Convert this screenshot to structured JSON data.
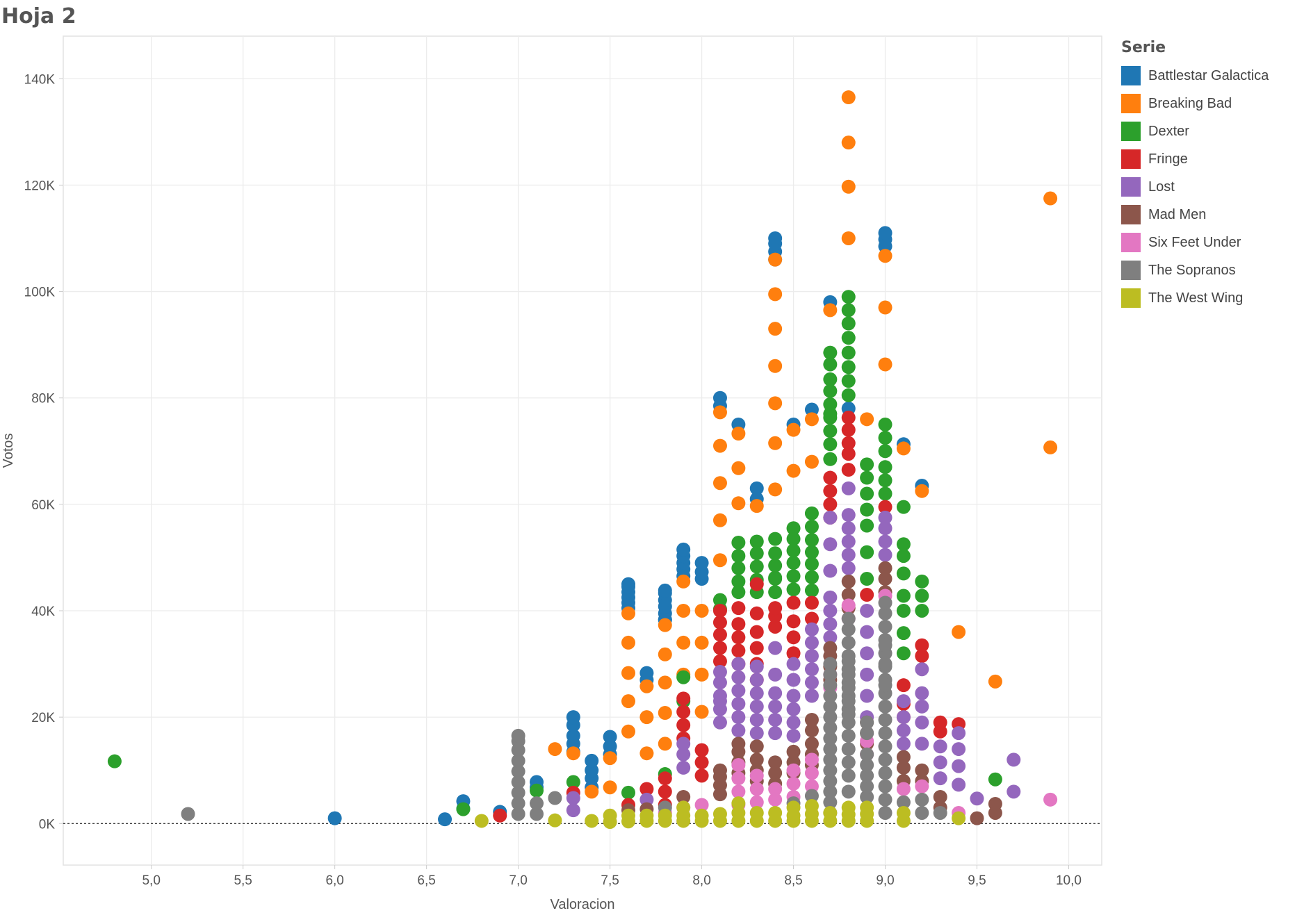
{
  "page": {
    "title": "Hoja 2"
  },
  "legend": {
    "title": "Serie",
    "items": [
      {
        "label": "Battlestar Galactica",
        "color": "#1f77b4"
      },
      {
        "label": "Breaking Bad",
        "color": "#ff7f0e"
      },
      {
        "label": "Dexter",
        "color": "#2ca02c"
      },
      {
        "label": "Fringe",
        "color": "#d62728"
      },
      {
        "label": "Lost",
        "color": "#9467bd"
      },
      {
        "label": "Mad Men",
        "color": "#8c564b"
      },
      {
        "label": "Six Feet Under",
        "color": "#e377c2"
      },
      {
        "label": "The Sopranos",
        "color": "#7f7f7f"
      },
      {
        "label": "The West Wing",
        "color": "#bcbd22"
      }
    ]
  },
  "chart_data": {
    "type": "scatter",
    "title": "",
    "xlabel": "Valoracion",
    "ylabel": "Votos",
    "xlim": [
      4.52,
      10.18
    ],
    "ylim": [
      -7800,
      148000
    ],
    "xticks": [
      5.0,
      5.5,
      6.0,
      6.5,
      7.0,
      7.5,
      8.0,
      8.5,
      9.0,
      9.5,
      10.0
    ],
    "xtick_labels": [
      "5,0",
      "5,5",
      "6,0",
      "6,5",
      "7,0",
      "7,5",
      "8,0",
      "8,5",
      "9,0",
      "9,5",
      "10,0"
    ],
    "yticks": [
      0,
      20000,
      40000,
      60000,
      80000,
      100000,
      120000,
      140000
    ],
    "ytick_labels": [
      "0K",
      "20K",
      "40K",
      "60K",
      "80K",
      "100K",
      "120K",
      "140K"
    ],
    "reference_line": {
      "y": 0,
      "style": "dotted"
    },
    "grid": true,
    "legend_position": "right",
    "series": [
      {
        "name": "Battlestar Galactica",
        "x": [
          6.0,
          6.6,
          6.7,
          6.7,
          6.9,
          7.1,
          7.1,
          7.3,
          7.3,
          7.3,
          7.3,
          7.3,
          7.4,
          7.4,
          7.4,
          7.4,
          7.5,
          7.5,
          7.5,
          7.6,
          7.6,
          7.6,
          7.6,
          7.6,
          7.6,
          7.7,
          7.7,
          7.8,
          7.8,
          7.8,
          7.8,
          7.8,
          7.8,
          7.8,
          7.9,
          7.9,
          7.9,
          7.9,
          7.9,
          8.0,
          8.0,
          8.0,
          8.1,
          8.1,
          8.2,
          8.3,
          8.3,
          8.4,
          8.4,
          8.4,
          8.4,
          8.5,
          8.6,
          8.7,
          8.8,
          9.0,
          9.0,
          9.0,
          9.1,
          9.2
        ],
        "y": [
          1000,
          800,
          2800,
          4200,
          2200,
          6800,
          7800,
          13500,
          15000,
          16500,
          18500,
          20000,
          6800,
          8500,
          10000,
          11800,
          13000,
          14500,
          16300,
          40500,
          41500,
          42500,
          43500,
          44500,
          45000,
          27000,
          28300,
          38300,
          39500,
          40800,
          42000,
          43300,
          43800,
          38300,
          46500,
          47800,
          49000,
          50300,
          51500,
          46000,
          47300,
          49000,
          78500,
          80000,
          75000,
          61000,
          63000,
          106000,
          107500,
          109000,
          110000,
          75000,
          77800,
          98000,
          78000,
          108500,
          109800,
          111000,
          71300,
          63500
        ]
      },
      {
        "name": "Breaking Bad",
        "x": [
          7.2,
          7.3,
          7.4,
          7.5,
          7.5,
          7.6,
          7.6,
          7.6,
          7.6,
          7.6,
          7.7,
          7.7,
          7.7,
          7.8,
          7.8,
          7.8,
          7.8,
          7.8,
          7.9,
          7.9,
          7.9,
          7.9,
          8.0,
          8.0,
          8.0,
          8.0,
          8.1,
          8.1,
          8.1,
          8.1,
          8.1,
          8.2,
          8.2,
          8.2,
          8.3,
          8.4,
          8.4,
          8.4,
          8.4,
          8.4,
          8.4,
          8.4,
          8.5,
          8.5,
          8.6,
          8.6,
          8.7,
          8.8,
          8.8,
          8.8,
          8.8,
          8.9,
          9.0,
          9.0,
          9.0,
          9.1,
          9.2,
          9.4,
          9.6,
          9.9,
          9.9
        ],
        "y": [
          14000,
          13200,
          6000,
          6800,
          12300,
          17300,
          23000,
          28300,
          34000,
          39500,
          13200,
          20000,
          25800,
          15000,
          20800,
          26500,
          31800,
          37300,
          28000,
          34000,
          40000,
          45500,
          21000,
          28000,
          34000,
          40000,
          49500,
          57000,
          64000,
          71000,
          77300,
          60200,
          66800,
          73300,
          59700,
          62800,
          71500,
          79000,
          86000,
          93000,
          99500,
          106000,
          66300,
          74000,
          68000,
          76000,
          96500,
          110000,
          119700,
          128000,
          136500,
          76000,
          86300,
          97000,
          106700,
          70500,
          62500,
          36000,
          26700,
          70700,
          117500
        ]
      },
      {
        "name": "Dexter",
        "x": [
          4.8,
          6.7,
          7.1,
          7.3,
          7.6,
          7.8,
          7.9,
          7.9,
          8.1,
          8.1,
          8.2,
          8.2,
          8.2,
          8.2,
          8.2,
          8.3,
          8.3,
          8.3,
          8.3,
          8.3,
          8.4,
          8.4,
          8.4,
          8.4,
          8.4,
          8.4,
          8.5,
          8.5,
          8.5,
          8.5,
          8.5,
          8.5,
          8.6,
          8.6,
          8.6,
          8.6,
          8.6,
          8.6,
          8.6,
          8.7,
          8.7,
          8.7,
          8.7,
          8.7,
          8.7,
          8.7,
          8.7,
          8.7,
          8.7,
          8.8,
          8.8,
          8.8,
          8.8,
          8.8,
          8.8,
          8.8,
          8.8,
          8.9,
          8.9,
          8.9,
          8.9,
          8.9,
          8.9,
          8.9,
          9.0,
          9.0,
          9.0,
          9.0,
          9.0,
          9.0,
          9.1,
          9.1,
          9.1,
          9.1,
          9.1,
          9.1,
          9.1,
          9.1,
          9.2,
          9.2,
          9.2,
          9.6
        ],
        "y": [
          11700,
          2700,
          6200,
          7800,
          5800,
          9300,
          23000,
          27500,
          40300,
          42000,
          43500,
          45500,
          48000,
          50300,
          52800,
          43500,
          45800,
          48300,
          50800,
          53000,
          43500,
          46200,
          48500,
          50800,
          53500,
          46000,
          44000,
          46500,
          49000,
          51300,
          53500,
          55500,
          43800,
          46300,
          48800,
          51000,
          53300,
          55800,
          58300,
          68500,
          71300,
          73800,
          76300,
          78800,
          81300,
          83500,
          86300,
          88500,
          77000,
          80500,
          83200,
          85800,
          88500,
          91300,
          94000,
          96500,
          99000,
          46000,
          51000,
          56000,
          59000,
          62000,
          65000,
          67500,
          62000,
          64500,
          67000,
          70000,
          72500,
          75000,
          32000,
          35800,
          40000,
          42800,
          47000,
          50300,
          52500,
          59500,
          40000,
          42800,
          45500,
          8300
        ]
      },
      {
        "name": "Fringe",
        "x": [
          6.9,
          7.3,
          7.6,
          7.7,
          7.8,
          7.8,
          7.8,
          7.9,
          7.9,
          7.9,
          7.9,
          8.0,
          8.0,
          8.0,
          8.1,
          8.1,
          8.1,
          8.1,
          8.1,
          8.2,
          8.2,
          8.2,
          8.2,
          8.2,
          8.3,
          8.3,
          8.3,
          8.3,
          8.3,
          8.3,
          8.4,
          8.4,
          8.4,
          8.5,
          8.5,
          8.5,
          8.5,
          8.6,
          8.6,
          8.7,
          8.7,
          8.7,
          8.7,
          8.8,
          8.8,
          8.8,
          8.8,
          8.8,
          8.9,
          9.0,
          9.1,
          9.1,
          9.1,
          9.2,
          9.2,
          9.3,
          9.3,
          9.4
        ],
        "y": [
          1500,
          5800,
          3500,
          6500,
          3500,
          6000,
          8500,
          16000,
          18500,
          21000,
          23500,
          9000,
          11500,
          13800,
          30500,
          33000,
          35500,
          37800,
          40000,
          30000,
          32500,
          35000,
          37500,
          40500,
          27000,
          30000,
          33000,
          36000,
          39500,
          45000,
          37000,
          39000,
          40500,
          32000,
          35000,
          38000,
          41500,
          38500,
          41500,
          57500,
          60000,
          62500,
          65000,
          66500,
          69500,
          71500,
          74000,
          76300,
          43000,
          59500,
          20000,
          22500,
          26000,
          31500,
          33500,
          17300,
          19000,
          18700
        ]
      },
      {
        "name": "Lost",
        "x": [
          7.3,
          7.3,
          7.7,
          7.9,
          7.9,
          7.9,
          8.1,
          8.1,
          8.1,
          8.1,
          8.1,
          8.1,
          8.2,
          8.2,
          8.2,
          8.2,
          8.2,
          8.2,
          8.3,
          8.3,
          8.3,
          8.3,
          8.3,
          8.3,
          8.4,
          8.4,
          8.4,
          8.4,
          8.4,
          8.4,
          8.5,
          8.5,
          8.5,
          8.5,
          8.5,
          8.5,
          8.6,
          8.6,
          8.6,
          8.6,
          8.6,
          8.6,
          8.7,
          8.7,
          8.7,
          8.7,
          8.7,
          8.7,
          8.7,
          8.8,
          8.8,
          8.8,
          8.8,
          8.8,
          8.8,
          8.9,
          8.9,
          8.9,
          8.9,
          8.9,
          8.9,
          9.0,
          9.0,
          9.0,
          9.0,
          9.1,
          9.1,
          9.1,
          9.1,
          9.2,
          9.2,
          9.2,
          9.2,
          9.2,
          9.3,
          9.3,
          9.3,
          9.4,
          9.4,
          9.4,
          9.4,
          9.5,
          9.7,
          9.7
        ],
        "y": [
          2500,
          4800,
          4500,
          10500,
          13000,
          15000,
          19000,
          21500,
          24000,
          26500,
          28500,
          23000,
          17500,
          20000,
          22500,
          25000,
          27500,
          30000,
          17000,
          19500,
          22000,
          24500,
          27000,
          29500,
          17000,
          19500,
          22000,
          24500,
          28000,
          33000,
          16500,
          19000,
          21500,
          24000,
          27000,
          30000,
          24000,
          26500,
          29000,
          31500,
          34000,
          36500,
          35000,
          37500,
          40000,
          42500,
          47500,
          52500,
          57500,
          48000,
          50500,
          53000,
          55500,
          58000,
          63000,
          20000,
          24000,
          28000,
          32000,
          36000,
          40000,
          50500,
          53000,
          55500,
          57500,
          15000,
          17500,
          20000,
          23000,
          15000,
          19000,
          22000,
          24500,
          29000,
          8500,
          11500,
          14500,
          7300,
          10800,
          14000,
          17000,
          4700,
          6000,
          12000
        ]
      },
      {
        "name": "Mad Men",
        "x": [
          7.6,
          7.7,
          7.9,
          8.1,
          8.1,
          8.1,
          8.1,
          8.2,
          8.2,
          8.2,
          8.2,
          8.3,
          8.3,
          8.3,
          8.3,
          8.4,
          8.4,
          8.4,
          8.5,
          8.5,
          8.5,
          8.6,
          8.6,
          8.6,
          8.6,
          8.6,
          8.7,
          8.7,
          8.7,
          8.7,
          8.8,
          8.8,
          8.8,
          8.9,
          8.9,
          8.9,
          9.0,
          9.0,
          9.0,
          9.1,
          9.1,
          9.1,
          9.2,
          9.2,
          9.3,
          9.3,
          9.5,
          9.6,
          9.6
        ],
        "y": [
          2500,
          2700,
          5000,
          5500,
          7200,
          8800,
          10000,
          9500,
          11500,
          13500,
          15000,
          8000,
          10000,
          12000,
          14500,
          7500,
          9500,
          11500,
          9500,
          11500,
          13500,
          11000,
          13000,
          15000,
          17500,
          19500,
          27000,
          29500,
          31500,
          33000,
          40500,
          43000,
          45500,
          15000,
          17000,
          19000,
          43500,
          46000,
          48000,
          8000,
          10500,
          12500,
          8000,
          10000,
          3000,
          5000,
          1000,
          2000,
          3700
        ]
      },
      {
        "name": "Six Feet Under",
        "x": [
          7.8,
          7.9,
          8.0,
          8.2,
          8.2,
          8.2,
          8.2,
          8.3,
          8.3,
          8.3,
          8.4,
          8.4,
          8.5,
          8.5,
          8.5,
          8.6,
          8.6,
          8.6,
          8.7,
          8.7,
          8.8,
          8.8,
          8.9,
          8.9,
          9.0,
          9.1,
          9.2,
          9.4,
          9.9
        ],
        "y": [
          2000,
          3000,
          3500,
          3500,
          6000,
          8500,
          11000,
          4000,
          6500,
          9000,
          4500,
          6500,
          5000,
          7500,
          10000,
          7000,
          9500,
          12000,
          25500,
          28000,
          38500,
          41000,
          13000,
          15500,
          42800,
          6500,
          7000,
          2000,
          4500
        ]
      },
      {
        "name": "The Sopranos",
        "x": [
          5.2,
          7.0,
          7.0,
          7.0,
          7.0,
          7.0,
          7.0,
          7.0,
          7.0,
          7.0,
          7.1,
          7.1,
          7.2,
          7.8,
          8.5,
          8.6,
          8.7,
          8.7,
          8.7,
          8.7,
          8.7,
          8.7,
          8.7,
          8.7,
          8.7,
          8.7,
          8.7,
          8.7,
          8.7,
          8.7,
          8.7,
          8.8,
          8.8,
          8.8,
          8.8,
          8.8,
          8.8,
          8.8,
          8.8,
          8.8,
          8.8,
          8.8,
          8.8,
          8.8,
          8.8,
          8.8,
          8.8,
          8.8,
          8.8,
          8.8,
          8.9,
          8.9,
          8.9,
          8.9,
          8.9,
          8.9,
          8.9,
          9.0,
          9.0,
          9.0,
          9.0,
          9.0,
          9.0,
          9.0,
          9.0,
          9.0,
          9.0,
          9.0,
          9.0,
          9.0,
          9.0,
          9.0,
          9.0,
          9.0,
          9.0,
          9.0,
          9.0,
          9.1,
          9.2,
          9.2,
          9.3
        ],
        "y": [
          1800,
          1800,
          3800,
          5800,
          7800,
          9800,
          11800,
          13800,
          15500,
          16500,
          1800,
          3800,
          4800,
          3000,
          3800,
          5200,
          4000,
          6000,
          8000,
          10000,
          12000,
          14000,
          16000,
          18000,
          20000,
          22000,
          24000,
          2000,
          26000,
          28000,
          30000,
          6000,
          9000,
          11500,
          14000,
          16500,
          19000,
          21500,
          24000,
          26500,
          29000,
          31500,
          34000,
          36500,
          38500,
          20500,
          23000,
          25500,
          28000,
          30500,
          5000,
          7000,
          9000,
          11000,
          13000,
          17000,
          19000,
          2000,
          4500,
          7000,
          9500,
          12000,
          14500,
          17000,
          19500,
          22000,
          24500,
          27000,
          29500,
          32000,
          34500,
          37000,
          39500,
          41500,
          26000,
          30000,
          33500,
          4000,
          2000,
          4500,
          2000
        ]
      },
      {
        "name": "The West Wing",
        "x": [
          6.8,
          7.2,
          7.4,
          7.5,
          7.5,
          7.6,
          7.6,
          7.7,
          7.7,
          7.8,
          7.8,
          7.9,
          7.9,
          7.9,
          8.0,
          8.0,
          8.1,
          8.1,
          8.2,
          8.2,
          8.2,
          8.3,
          8.3,
          8.4,
          8.4,
          8.5,
          8.5,
          8.5,
          8.6,
          8.6,
          8.6,
          8.7,
          8.7,
          8.8,
          8.8,
          8.8,
          8.9,
          8.9,
          8.9,
          9.1,
          9.1,
          9.4
        ],
        "y": [
          500,
          600,
          500,
          300,
          1500,
          400,
          1500,
          500,
          1500,
          500,
          1500,
          500,
          1500,
          3000,
          500,
          1500,
          500,
          1800,
          500,
          2000,
          3800,
          500,
          2000,
          500,
          2000,
          500,
          1500,
          3000,
          500,
          1800,
          3300,
          500,
          2000,
          500,
          1700,
          3000,
          500,
          1800,
          3000,
          500,
          2000,
          1000
        ]
      }
    ]
  }
}
